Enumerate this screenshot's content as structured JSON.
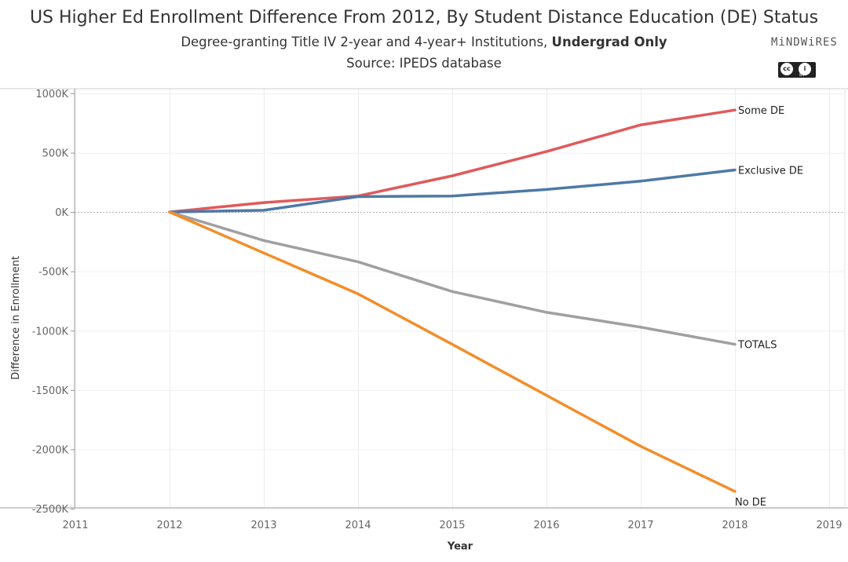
{
  "header": {
    "title": "US Higher Ed Enrollment Difference From 2012, By Student Distance Education (DE) Status",
    "subtitle_prefix": "Degree-granting Title IV 2-year and 4-year+ Institutions, ",
    "subtitle_bold": "Undergrad Only",
    "source": "Source: IPEDS database"
  },
  "logo": {
    "text": "MiNDWiRES",
    "license_icon": "cc-by-icon",
    "license_text": "BY"
  },
  "chart_data": {
    "type": "line",
    "xlabel": "Year",
    "ylabel": "Difference in Enrollment",
    "xlim": [
      2011,
      2019
    ],
    "ylim": [
      -2500000,
      1000000
    ],
    "x_ticks": [
      2011,
      2012,
      2013,
      2014,
      2015,
      2016,
      2017,
      2018,
      2019
    ],
    "x_tick_labels": [
      "2011",
      "2012",
      "2013",
      "2014",
      "2015",
      "2016",
      "2017",
      "2018",
      "2019"
    ],
    "y_ticks": [
      1000000,
      500000,
      0,
      -500000,
      -1000000,
      -1500000,
      -2000000,
      -2500000
    ],
    "y_tick_labels": [
      "1000K",
      "500K",
      "0K",
      "-500K",
      "-1000K",
      "-1500K",
      "-2000K",
      "-2500K"
    ],
    "x": [
      2012,
      2013,
      2014,
      2015,
      2016,
      2017,
      2018
    ],
    "series": [
      {
        "name": "Some DE",
        "color": "#e05a5b",
        "values": [
          0,
          80000,
          135000,
          305000,
          510000,
          735000,
          860000
        ]
      },
      {
        "name": "Exclusive DE",
        "color": "#4e79a7",
        "values": [
          0,
          15000,
          130000,
          135000,
          190000,
          260000,
          355000
        ]
      },
      {
        "name": "TOTALS",
        "color": "#a0a0a0",
        "values": [
          0,
          -240000,
          -420000,
          -670000,
          -845000,
          -970000,
          -1115000
        ]
      },
      {
        "name": "No DE",
        "color": "#f28e2b",
        "values": [
          0,
          -345000,
          -690000,
          -1115000,
          -1545000,
          -1975000,
          -2355000
        ]
      }
    ],
    "grid": true,
    "legend": "direct labels at line ends"
  }
}
